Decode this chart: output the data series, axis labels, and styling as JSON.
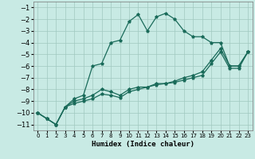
{
  "xlabel": "Humidex (Indice chaleur)",
  "xlim": [
    -0.5,
    23.5
  ],
  "ylim": [
    -11.5,
    -0.5
  ],
  "yticks": [
    -11,
    -10,
    -9,
    -8,
    -7,
    -6,
    -5,
    -4,
    -3,
    -2,
    -1
  ],
  "xticks": [
    0,
    1,
    2,
    3,
    4,
    5,
    6,
    7,
    8,
    9,
    10,
    11,
    12,
    13,
    14,
    15,
    16,
    17,
    18,
    19,
    20,
    21,
    22,
    23
  ],
  "bg_color": "#c8eae4",
  "grid_color": "#a0c8c0",
  "line_color": "#1a6b5a",
  "line1_y": [
    -10,
    -10.5,
    -11,
    -9.5,
    -8.8,
    -8.5,
    -6.0,
    -5.8,
    -4.0,
    -3.8,
    -2.2,
    -1.6,
    -3.0,
    -1.8,
    -1.5,
    -2.0,
    -3.0,
    -3.5,
    -3.5,
    -4.0,
    -4.0,
    -6.0,
    -6.0,
    -4.8
  ],
  "line2_y": [
    -10,
    -10.5,
    -11,
    -9.5,
    -9.0,
    -8.8,
    -8.5,
    -8.0,
    -8.2,
    -8.5,
    -8.0,
    -7.8,
    -7.8,
    -7.5,
    -7.5,
    -7.3,
    -7.0,
    -6.8,
    -6.5,
    -5.5,
    -4.5,
    -6.0,
    -6.0,
    -4.8
  ],
  "line3_y": [
    -10,
    -10.5,
    -11,
    -9.5,
    -9.2,
    -9.0,
    -8.8,
    -8.4,
    -8.5,
    -8.7,
    -8.2,
    -8.0,
    -7.8,
    -7.6,
    -7.5,
    -7.4,
    -7.2,
    -7.0,
    -6.8,
    -5.8,
    -4.8,
    -6.2,
    -6.2,
    -4.8
  ]
}
